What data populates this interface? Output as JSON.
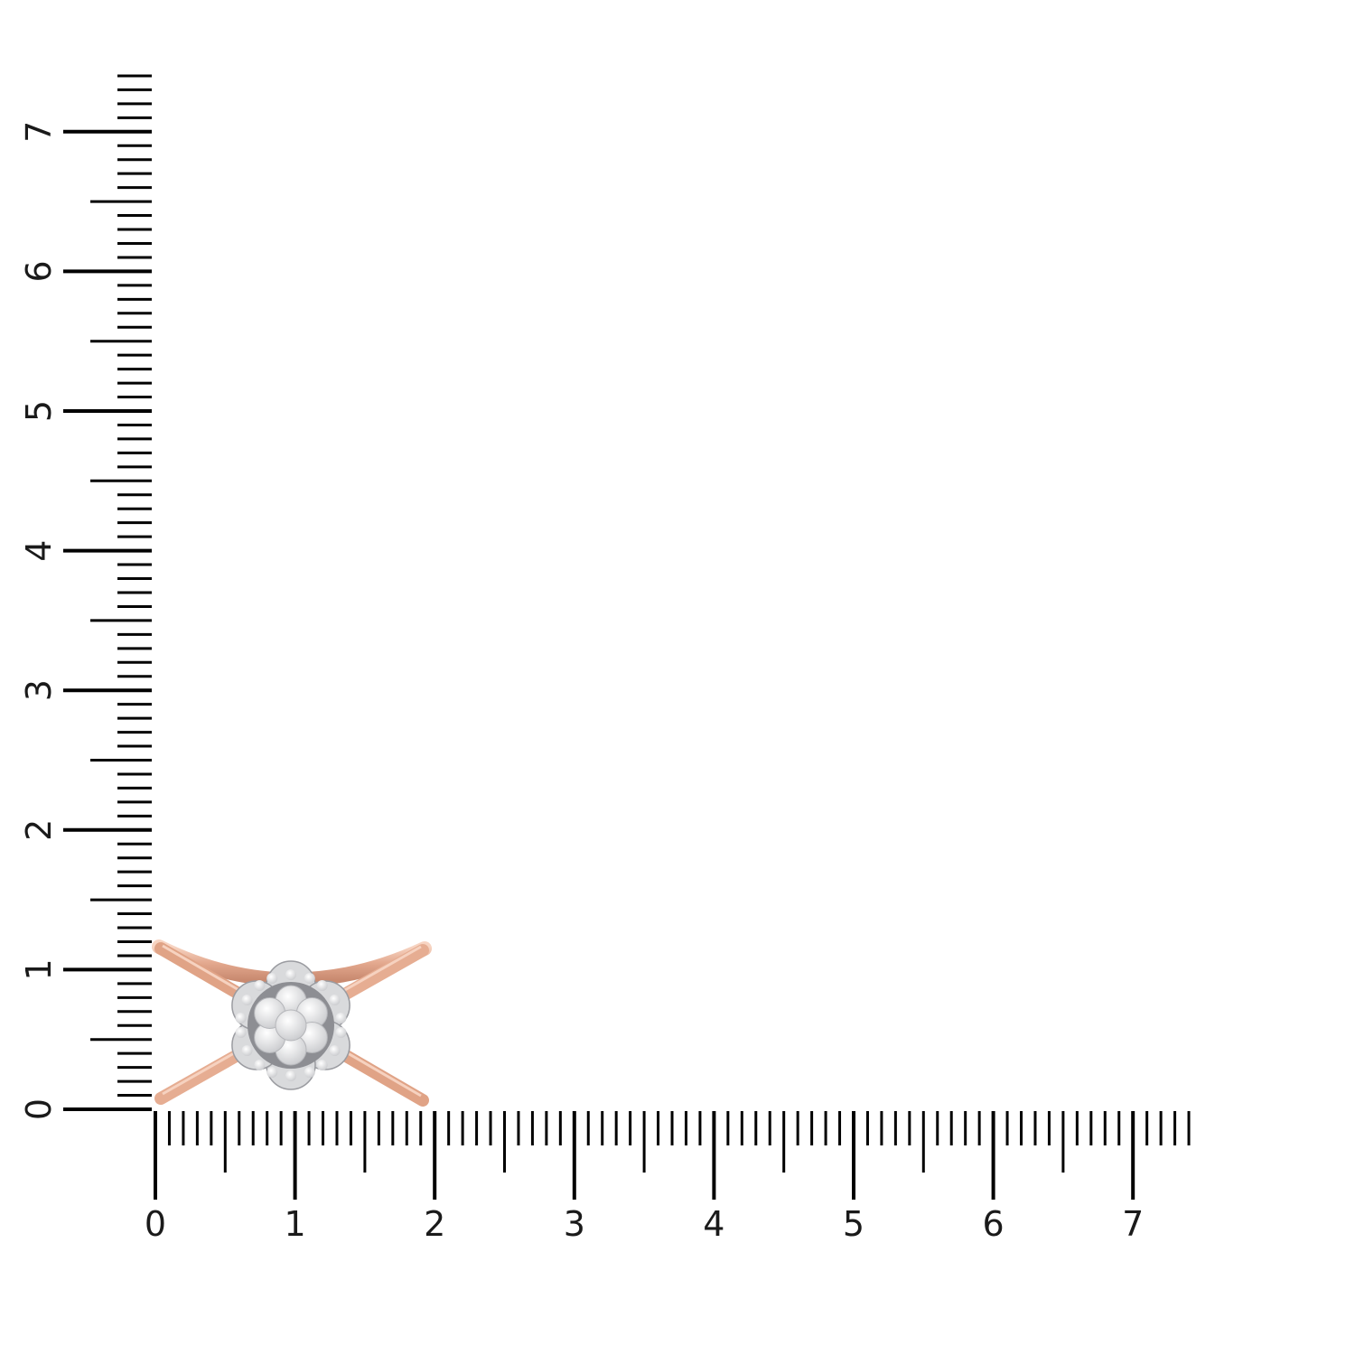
{
  "ruler": {
    "unit_max": 7.4,
    "subdivisions": 10,
    "horizontal_labels": [
      "0",
      "1",
      "2",
      "3",
      "4",
      "5",
      "6",
      "7"
    ],
    "vertical_labels": [
      "0",
      "1",
      "2",
      "3",
      "4",
      "5",
      "6",
      "7"
    ],
    "tick_color": "#000000"
  },
  "product": {
    "type": "ring",
    "metal_color": "#e3a88e",
    "metal_highlight": "#f7d4c2",
    "setting_color": "#d9dadc",
    "diamond_color": "#f4f4f6"
  }
}
